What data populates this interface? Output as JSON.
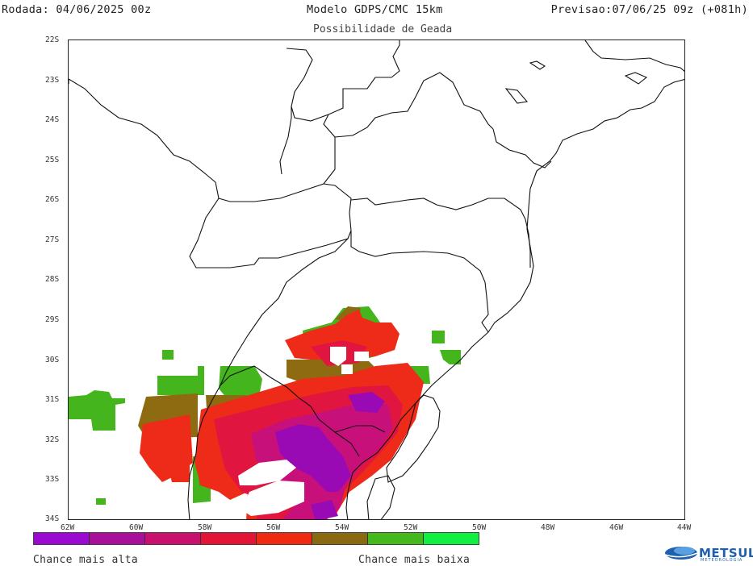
{
  "header": {
    "run": "Rodada: 04/06/2025 00z",
    "model": "Modelo GDPS/CMC 15km",
    "forecast": "Previsao:07/06/25 09z (+081h)"
  },
  "map": {
    "title": "Possibilidade de Geada",
    "lat_labels": [
      "22S",
      "23S",
      "24S",
      "25S",
      "26S",
      "27S",
      "28S",
      "29S",
      "30S",
      "31S",
      "32S",
      "33S",
      "34S"
    ],
    "lon_labels": [
      "62W",
      "60W",
      "58W",
      "56W",
      "54W",
      "52W",
      "50W",
      "48W",
      "46W",
      "44W"
    ],
    "frost_colors": {
      "very_high": "#9a0ab4",
      "high": "#c8107a",
      "mid_high": "#e01540",
      "mid": "#ee2a18",
      "mid_low": "#8e6b10",
      "low": "#44b51c",
      "very_low": "#1ee640"
    }
  },
  "legend": {
    "colors": [
      "#9a0ad0",
      "#a8109c",
      "#c8106e",
      "#e41436",
      "#f02a10",
      "#8a6a10",
      "#44b81c",
      "#10f040"
    ],
    "high_label": "Chance mais alta",
    "low_label": "Chance mais baixa"
  },
  "logo": {
    "name": "METSUL",
    "subtitle": "METEOROLOGIA"
  }
}
